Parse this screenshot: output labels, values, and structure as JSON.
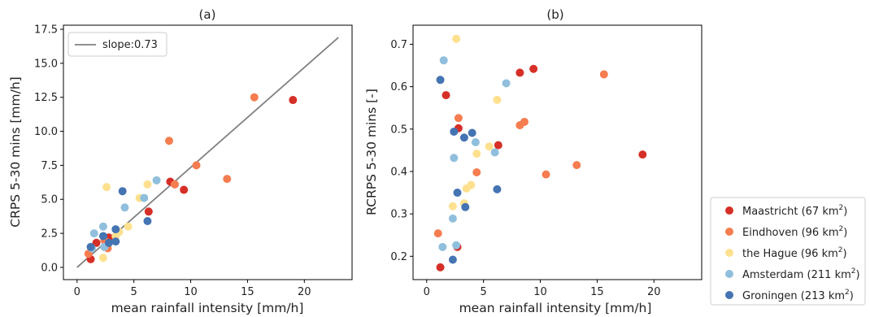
{
  "chart_data": [
    {
      "type": "scatter",
      "title": "(a)",
      "xlabel": "mean rainfall intensity [mm/h]",
      "ylabel": "CRPS 5-30 mins [mm/h]",
      "xlim": [
        -1.2,
        24.2
      ],
      "ylim": [
        -0.9,
        17.8
      ],
      "xticks": [
        "0",
        "5",
        "10",
        "15",
        "20"
      ],
      "yticks": [
        "0.0",
        "2.5",
        "5.0",
        "7.5",
        "10.0",
        "12.5",
        "15.0",
        "17.5"
      ],
      "line": {
        "name": "slope:0.73",
        "x": [
          0,
          23
        ],
        "y": [
          0,
          16.9
        ],
        "color": "#808080"
      },
      "legend_loc": "upper left",
      "series": [
        {
          "name": "Maastricht (67 km²)",
          "color": "#d62f27",
          "x": [
            1.2,
            1.7,
            2.8,
            6.3,
            8.2,
            9.4,
            19.0
          ],
          "y": [
            0.6,
            1.8,
            2.2,
            4.1,
            6.3,
            5.7,
            12.3
          ]
        },
        {
          "name": "Eindhoven (96 km²)",
          "color": "#f57d4f",
          "x": [
            1.0,
            2.4,
            2.7,
            8.1,
            8.6,
            10.5,
            13.2,
            15.6
          ],
          "y": [
            1.0,
            2.0,
            1.4,
            9.3,
            6.1,
            7.5,
            6.5,
            12.5
          ]
        },
        {
          "name": "the Hague (96 km²)",
          "color": "#fee08f",
          "x": [
            2.3,
            2.6,
            3.4,
            3.7,
            4.5,
            5.5,
            6.2
          ],
          "y": [
            0.7,
            5.9,
            2.3,
            2.6,
            3.0,
            5.1,
            6.1
          ]
        },
        {
          "name": "Amsterdam (211 km²)",
          "color": "#90bfdd",
          "x": [
            1.3,
            1.5,
            2.3,
            2.4,
            4.2,
            5.9,
            7.0
          ],
          "y": [
            1.4,
            2.5,
            3.0,
            1.5,
            4.4,
            5.1,
            6.4
          ]
        },
        {
          "name": "Groningen (213 km²)",
          "color": "#4474b2",
          "x": [
            1.2,
            2.3,
            2.8,
            3.4,
            3.4,
            4.0,
            6.2
          ],
          "y": [
            1.5,
            2.3,
            1.8,
            1.9,
            2.8,
            5.6,
            3.4
          ]
        }
      ]
    },
    {
      "type": "scatter",
      "title": "(b)",
      "xlabel": "mean rainfall intensity [mm/h]",
      "ylabel": "RCRPS 5-30 mins [-]",
      "xlim": [
        -1.2,
        24.2
      ],
      "ylim": [
        0.145,
        0.745
      ],
      "xticks": [
        "0",
        "5",
        "10",
        "15",
        "20"
      ],
      "yticks": [
        "0.2",
        "0.3",
        "0.4",
        "0.5",
        "0.6",
        "0.7"
      ],
      "legend_loc": "outside right",
      "series": [
        {
          "name": "Maastricht (67 km²)",
          "color": "#d62f27",
          "x": [
            1.2,
            1.7,
            2.7,
            2.8,
            6.3,
            8.2,
            9.4,
            19.0
          ],
          "y": [
            0.174,
            0.58,
            0.222,
            0.502,
            0.462,
            0.633,
            0.642,
            0.44
          ]
        },
        {
          "name": "Eindhoven (96 km²)",
          "color": "#f57d4f",
          "x": [
            1.0,
            2.8,
            4.4,
            8.2,
            8.6,
            10.5,
            13.2,
            15.6
          ],
          "y": [
            0.254,
            0.526,
            0.398,
            0.509,
            0.517,
            0.393,
            0.415,
            0.629
          ]
        },
        {
          "name": "the Hague (96 km²)",
          "color": "#fee08f",
          "x": [
            2.3,
            2.6,
            3.3,
            3.5,
            3.9,
            4.4,
            5.5,
            6.2
          ],
          "y": [
            0.318,
            0.713,
            0.325,
            0.36,
            0.368,
            0.442,
            0.459,
            0.569
          ]
        },
        {
          "name": "Amsterdam (211 km²)",
          "color": "#90bfdd",
          "x": [
            1.4,
            1.5,
            2.3,
            2.4,
            2.6,
            4.3,
            6.0,
            7.0
          ],
          "y": [
            0.222,
            0.662,
            0.289,
            0.432,
            0.226,
            0.469,
            0.445,
            0.608
          ]
        },
        {
          "name": "Groningen (213 km²)",
          "color": "#4474b2",
          "x": [
            1.2,
            2.3,
            2.4,
            2.7,
            3.3,
            3.4,
            4.0,
            6.2
          ],
          "y": [
            0.616,
            0.192,
            0.494,
            0.35,
            0.48,
            0.316,
            0.491,
            0.358
          ]
        }
      ]
    }
  ],
  "legend": [
    {
      "city": "Maastricht (67 km",
      "sup": "2",
      "close": ")",
      "color": "#d62f27"
    },
    {
      "city": "Eindhoven (96 km",
      "sup": "2",
      "close": ")",
      "color": "#f57d4f"
    },
    {
      "city": "the Hague (96 km",
      "sup": "2",
      "close": ")",
      "color": "#fee08f"
    },
    {
      "city": "Amsterdam (211 km",
      "sup": "2",
      "close": ")",
      "color": "#90bfdd"
    },
    {
      "city": "Groningen (213 km",
      "sup": "2",
      "close": ")",
      "color": "#4474b2"
    }
  ]
}
